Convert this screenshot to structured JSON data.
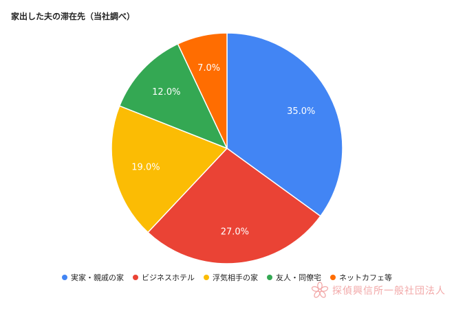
{
  "chart_data": {
    "type": "pie",
    "title": "家出した夫の滞在先（当社調べ）",
    "slices": [
      {
        "label": "実家・親戚の家",
        "value": 35.0,
        "display": "35.0%",
        "color": "#4285F4"
      },
      {
        "label": "ビジネスホテル",
        "value": 27.0,
        "display": "27.0%",
        "color": "#EA4335"
      },
      {
        "label": "浮気相手の家",
        "value": 19.0,
        "display": "19.0%",
        "color": "#FBBC04"
      },
      {
        "label": "友人・同僚宅",
        "value": 12.0,
        "display": "12.0%",
        "color": "#34A853"
      },
      {
        "label": "ネットカフェ等",
        "value": 7.0,
        "display": "7.0%",
        "color": "#FF6D01"
      }
    ],
    "legend_position": "bottom",
    "start_angle": "12 o'clock",
    "direction": "clockwise"
  },
  "watermark": {
    "text": "探偵興信所一般社団法人",
    "icon": "cherry-blossom-icon",
    "color": "#f2a8a8"
  }
}
